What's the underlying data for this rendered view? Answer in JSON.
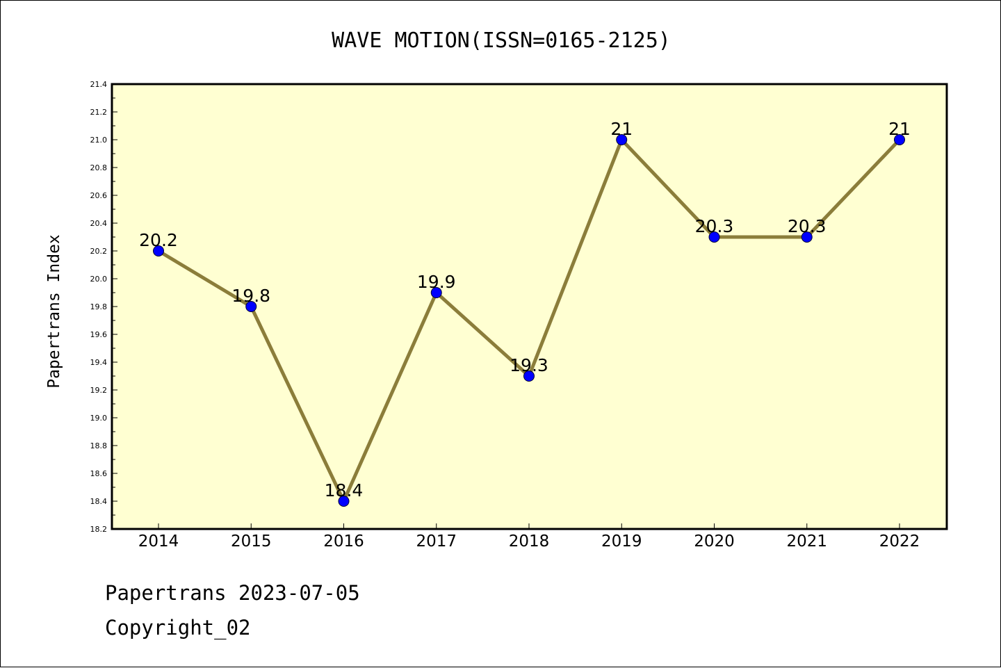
{
  "footer": {
    "date_line": "Papertrans 2023-07-05",
    "copyright": "Copyright_02"
  },
  "chart_data": {
    "type": "line",
    "title": "WAVE MOTION(ISSN=0165-2125)",
    "xlabel": "",
    "ylabel": "Papertrans Index",
    "categories": [
      "2014",
      "2015",
      "2016",
      "2017",
      "2018",
      "2019",
      "2020",
      "2021",
      "2022"
    ],
    "values": [
      20.2,
      19.8,
      18.4,
      19.9,
      19.3,
      21,
      20.3,
      20.3,
      21
    ],
    "data_labels": [
      "20.2",
      "19.8",
      "18.4",
      "19.9",
      "19.3",
      "21",
      "20.3",
      "20.3",
      "21"
    ],
    "ylim": [
      18.2,
      21.4
    ],
    "yticks": [
      "18.2",
      "18.4",
      "18.6",
      "18.8",
      "19.0",
      "19.2",
      "19.4",
      "19.6",
      "19.8",
      "20.0",
      "20.2",
      "20.4",
      "20.6",
      "20.8",
      "21.0",
      "21.2",
      "21.4"
    ],
    "grid": false,
    "legend": "none",
    "colors": {
      "plot_background": "#ffffd2",
      "line": "#8b7d3a",
      "marker": "#0000ff"
    }
  }
}
